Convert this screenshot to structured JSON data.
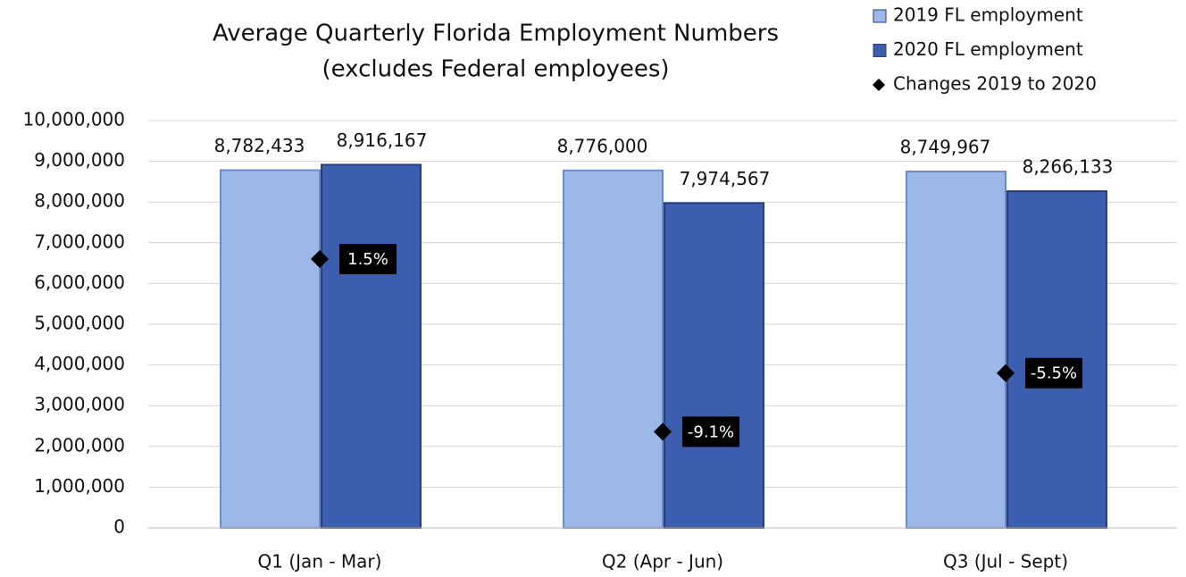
{
  "chart_data": {
    "type": "bar",
    "title": "Average Quarterly Florida Employment Numbers",
    "subtitle": "(excludes Federal employees)",
    "categories": [
      "Q1 (Jan - Mar)",
      "Q2 (Apr - Jun)",
      "Q3 (Jul - Sept)"
    ],
    "series": [
      {
        "name": "2019 FL employment",
        "color": "#9db8e8",
        "values": [
          8782433,
          8776000,
          8749967
        ],
        "value_labels": [
          "8,782,433",
          "8,776,000",
          "8,749,967"
        ]
      },
      {
        "name": "2020 FL employment",
        "color": "#3b5fae",
        "values": [
          8916167,
          7974567,
          8266133
        ],
        "value_labels": [
          "8,916,167",
          "7,974,567",
          "8,266,133"
        ]
      },
      {
        "name": "Changes 2019 to 2020",
        "type": "scatter",
        "axis": "y2",
        "color": "#000000",
        "values": [
          1.5,
          -9.1,
          -5.5
        ],
        "value_labels": [
          "1.5%",
          "-9.1%",
          "-5.5%"
        ]
      }
    ],
    "ylim": [
      0,
      10000000
    ],
    "yticks": [
      0,
      {
        "value": 1000000,
        "label": "1,000,000"
      },
      {
        "value": 2000000,
        "label": "2,000,000"
      },
      {
        "value": 3000000,
        "label": "3,000,000"
      },
      {
        "value": 4000000,
        "label": "4,000,000"
      },
      {
        "value": 5000000,
        "label": "5,000,000"
      },
      {
        "value": 6000000,
        "label": "6,000,000"
      },
      {
        "value": 7000000,
        "label": "7,000,000"
      },
      {
        "value": 8000000,
        "label": "8,000,000"
      },
      {
        "value": 9000000,
        "label": "9,000,000"
      },
      {
        "value": 10000000,
        "label": "10,000,000"
      }
    ],
    "y2lim": [
      -15,
      10
    ],
    "grid": true,
    "legend": "top-right"
  }
}
